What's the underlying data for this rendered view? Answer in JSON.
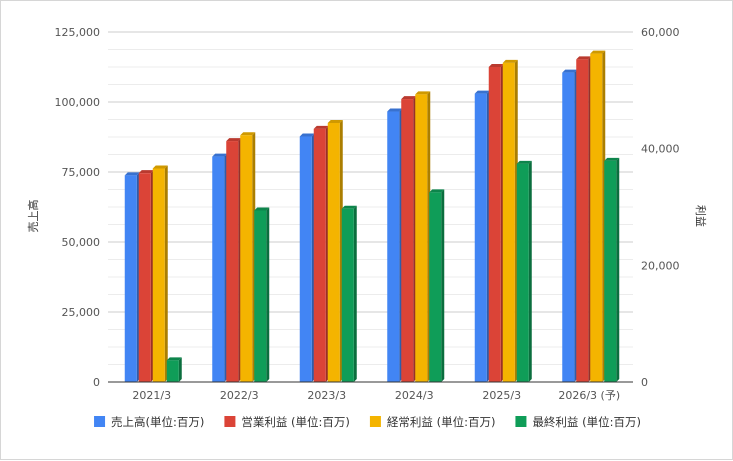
{
  "chart_data": {
    "type": "bar",
    "categories": [
      "2021/3",
      "2022/3",
      "2023/3",
      "2024/3",
      "2025/3",
      "2026/3 (予)"
    ],
    "series": [
      {
        "name": "売上高(単位:百万)",
        "axis": "left",
        "color": "#4285f4",
        "values": [
          73800,
          80500,
          87700,
          96600,
          103000,
          110500
        ]
      },
      {
        "name": "営業利益 (単位:百万)",
        "axis": "right",
        "color": "#db4437",
        "values": [
          35800,
          41300,
          43400,
          48500,
          54000,
          55300
        ]
      },
      {
        "name": "経常利益 (単位:百万)",
        "axis": "right",
        "color": "#f4b400",
        "values": [
          36600,
          42300,
          44400,
          49300,
          54700,
          56300
        ]
      },
      {
        "name": "最終利益 (単位:百万)",
        "axis": "right",
        "color": "#0f9d58",
        "values": [
          3700,
          29400,
          29700,
          32500,
          37400,
          37900
        ]
      }
    ],
    "left_axis": {
      "label": "売上高",
      "range": [
        0,
        125000
      ],
      "ticks": [
        "0",
        "25,000",
        "50,000",
        "75,000",
        "100,000",
        "125,000"
      ]
    },
    "right_axis": {
      "label": "利益",
      "range": [
        0,
        60000
      ],
      "ticks": [
        "0",
        "20,000",
        "40,000",
        "60,000"
      ]
    },
    "grid": true,
    "legend_position": "bottom",
    "bar_style": "3d"
  }
}
